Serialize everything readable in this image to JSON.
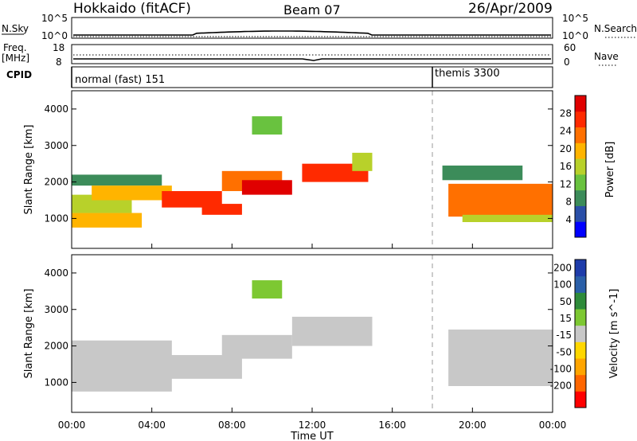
{
  "header": {
    "station": "Hokkaido (fitACF)",
    "beam": "Beam 07",
    "date": "26/Apr/2009"
  },
  "noise_panel": {
    "left_label": "N.Sky",
    "right_label": "N.Search",
    "left_ticks": [
      "10^5",
      "10^0"
    ],
    "right_ticks": [
      "10^5",
      "10^0"
    ]
  },
  "freq_panel": {
    "left_label": "Freq.",
    "left_unit": "[MHz]",
    "right_label": "Nave",
    "left_ticks": [
      "18",
      "8"
    ],
    "right_ticks": [
      "60",
      "0"
    ]
  },
  "cpid_panel": {
    "label": "CPID",
    "modes": [
      {
        "text": "normal (fast) 151",
        "start_hour": 0
      },
      {
        "text": "themis 3300",
        "start_hour": 18
      }
    ]
  },
  "colors": {
    "power": [
      "#0000ff",
      "#2a4fa8",
      "#3c8c5a",
      "#69c23f",
      "#b8d12a",
      "#ffb400",
      "#ff7000",
      "#ff2a00",
      "#e00000"
    ],
    "velocity": [
      "#ff0000",
      "#ff6600",
      "#ffa500",
      "#ffd700",
      "#c8c8c8",
      "#7dc832",
      "#2e8b3a",
      "#2a5fa8",
      "#1e3caa"
    ],
    "ground_scatter": "#c8c8c8"
  },
  "chart_data": [
    {
      "type": "heatmap",
      "name_hint": "power",
      "ylabel": "Slant Range [km]",
      "xlabel": "",
      "x_tick_labels": [
        "00:00",
        "04:00",
        "08:00",
        "12:00",
        "16:00",
        "20:00",
        "00:00"
      ],
      "x_hours": [
        0,
        4,
        8,
        12,
        16,
        20,
        24
      ],
      "xlim": [
        0,
        24
      ],
      "y_ticks": [
        1000,
        2000,
        3000,
        4000
      ],
      "ylim": [
        180,
        4500
      ],
      "colorbar": {
        "label": "Power [dB]",
        "tick_labels": [
          "28",
          "24",
          "20",
          "16",
          "12",
          "8",
          "4"
        ],
        "range": [
          0,
          30
        ]
      },
      "regions": [
        {
          "t0": 0.0,
          "t1": 3.5,
          "r0": 750,
          "r1": 1150,
          "value": 19
        },
        {
          "t0": 0.0,
          "t1": 3.0,
          "r0": 1150,
          "r1": 1650,
          "value": 14
        },
        {
          "t0": 0.0,
          "t1": 4.5,
          "r0": 1900,
          "r1": 2200,
          "value": 9
        },
        {
          "t0": 1.0,
          "t1": 5.0,
          "r0": 1500,
          "r1": 1900,
          "value": 18
        },
        {
          "t0": 4.5,
          "t1": 7.5,
          "r0": 1300,
          "r1": 1750,
          "value": 24
        },
        {
          "t0": 6.5,
          "t1": 8.5,
          "r0": 1100,
          "r1": 1400,
          "value": 26
        },
        {
          "t0": 7.5,
          "t1": 10.5,
          "r0": 1750,
          "r1": 2300,
          "value": 20
        },
        {
          "t0": 8.5,
          "t1": 11.0,
          "r0": 1650,
          "r1": 2050,
          "value": 27
        },
        {
          "t0": 11.5,
          "t1": 14.8,
          "r0": 2000,
          "r1": 2500,
          "value": 26
        },
        {
          "t0": 14.0,
          "t1": 15.0,
          "r0": 2300,
          "r1": 2800,
          "value": 15
        },
        {
          "t0": 9.0,
          "t1": 10.5,
          "r0": 3300,
          "r1": 3800,
          "value": 10
        },
        {
          "t0": 18.8,
          "t1": 24.0,
          "r0": 1050,
          "r1": 1950,
          "value": 22
        },
        {
          "t0": 19.5,
          "t1": 24.0,
          "r0": 900,
          "r1": 1100,
          "value": 14
        },
        {
          "t0": 18.5,
          "t1": 22.5,
          "r0": 2050,
          "r1": 2450,
          "value": 9
        }
      ]
    },
    {
      "type": "heatmap",
      "name_hint": "velocity",
      "ylabel": "Slant Range [km]",
      "xlabel": "Time UT",
      "x_tick_labels": [
        "00:00",
        "04:00",
        "08:00",
        "12:00",
        "16:00",
        "20:00",
        "00:00"
      ],
      "x_hours": [
        0,
        4,
        8,
        12,
        16,
        20,
        24
      ],
      "xlim": [
        0,
        24
      ],
      "y_ticks": [
        1000,
        2000,
        3000,
        4000
      ],
      "ylim": [
        180,
        4500
      ],
      "colorbar": {
        "label": "Velocity [m s^-1]",
        "tick_labels": [
          "200",
          "100",
          "50",
          "15",
          "-15",
          "-50",
          "-100",
          "-200"
        ],
        "range": [
          -250,
          250
        ]
      },
      "regions": [
        {
          "t0": 0.0,
          "t1": 5.0,
          "r0": 750,
          "r1": 2150,
          "value": 0
        },
        {
          "t0": 4.5,
          "t1": 8.5,
          "r0": 1100,
          "r1": 1750,
          "value": 0
        },
        {
          "t0": 7.5,
          "t1": 11.0,
          "r0": 1650,
          "r1": 2300,
          "value": 0
        },
        {
          "t0": 11.0,
          "t1": 15.0,
          "r0": 2000,
          "r1": 2800,
          "value": 0
        },
        {
          "t0": 9.0,
          "t1": 10.5,
          "r0": 3300,
          "r1": 3800,
          "value": 60
        },
        {
          "t0": 18.8,
          "t1": 24.0,
          "r0": 900,
          "r1": 2450,
          "value": 0
        }
      ]
    }
  ]
}
